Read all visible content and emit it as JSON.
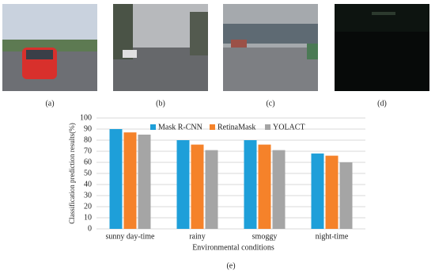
{
  "panel_labels": [
    "(a)",
    "(b)",
    "(c)",
    "(d)",
    "(e)"
  ],
  "chart_data": {
    "type": "bar",
    "y_label": "Classification prediction results(%)",
    "x_label": "Environmental conditions",
    "categories": [
      "sunny day-time",
      "rainy",
      "smoggy",
      "night-time"
    ],
    "series": [
      {
        "name": "Mask R-CNN",
        "color": "#1e9fd9",
        "values": [
          90,
          80,
          80,
          68
        ]
      },
      {
        "name": "RetinaMask",
        "color": "#f5822a",
        "values": [
          87,
          76,
          76,
          66
        ]
      },
      {
        "name": "YOLACT",
        "color": "#a5a5a5",
        "values": [
          85,
          71,
          71,
          60
        ]
      }
    ],
    "ylim": [
      0,
      100
    ],
    "yticks": [
      0,
      10,
      20,
      30,
      40,
      50,
      60,
      70,
      80,
      90,
      100
    ],
    "grid": true,
    "legend": "top"
  }
}
